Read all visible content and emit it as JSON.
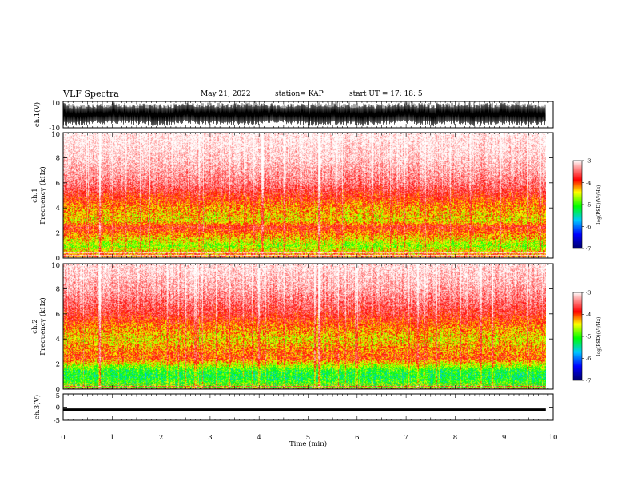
{
  "header": {
    "title": "VLF Spectra",
    "date": "May 21, 2022",
    "station": "station= KAP",
    "start": "start  UT =   17: 18: 5"
  },
  "chart_data": [
    {
      "type": "line",
      "panel": "ch1-waveform",
      "ylabel": "ch.1(V)",
      "ylim": [
        -10,
        10
      ],
      "yticks": [
        "10",
        "-10"
      ],
      "xlim": [
        0,
        10
      ],
      "data_extent_min": 9.85,
      "x": [
        0,
        0.5,
        1.0,
        1.5,
        2.0,
        2.5,
        3.0,
        3.5,
        4.0,
        4.5,
        5.0,
        5.5,
        6.0,
        6.5,
        7.0,
        7.5,
        8.0,
        8.5,
        9.0,
        9.5,
        9.85
      ],
      "envelope_top": [
        9,
        8,
        10,
        9,
        8,
        10,
        9,
        9,
        10,
        8,
        9,
        10,
        9,
        8,
        10,
        9,
        10,
        9,
        10,
        9,
        9
      ],
      "envelope_bottom": [
        -9,
        -8,
        -7,
        -8,
        -9,
        -7,
        -8,
        -9,
        -8,
        -7,
        -9,
        -8,
        -9,
        -8,
        -7,
        -9,
        -8,
        -9,
        -8,
        -9,
        -8
      ],
      "color": "#000000"
    },
    {
      "type": "heatmap",
      "panel": "ch1-spectrogram",
      "ylabel": "ch.1\nFrequency  (kHz)",
      "ylim": [
        0,
        10
      ],
      "yticks": [
        "0",
        "2",
        "4",
        "6",
        "8",
        "10"
      ],
      "xlim": [
        0,
        10
      ],
      "data_extent_min": 9.85,
      "colorbar": {
        "label": "log(PSD)(V²/Hz)",
        "range": [
          -7,
          -3
        ],
        "ticks": [
          "-3",
          "-4",
          "-5",
          "-6",
          "-7"
        ]
      },
      "frequency_profile_khz": [
        0.25,
        1.0,
        1.5,
        2.0,
        2.5,
        3.0,
        4.0,
        5.0,
        6.0,
        8.0,
        10.0
      ],
      "log_psd_profile": [
        -4.3,
        -4.9,
        -4.6,
        -4.3,
        -4.0,
        -4.6,
        -4.4,
        -4.0,
        -3.6,
        -3.2,
        -3.0
      ]
    },
    {
      "type": "heatmap",
      "panel": "ch2-spectrogram",
      "ylabel": "ch.2\nFrequency  (kHz)",
      "ylim": [
        0,
        10
      ],
      "yticks": [
        "0",
        "2",
        "4",
        "6",
        "8",
        "10"
      ],
      "xlim": [
        0,
        10
      ],
      "data_extent_min": 9.85,
      "colorbar": {
        "label": "log(PSD)(V²/Hz)",
        "range": [
          -7,
          -3
        ],
        "ticks": [
          "-3",
          "-4",
          "-5",
          "-6",
          "-7"
        ]
      },
      "frequency_profile_khz": [
        0.25,
        1.0,
        1.5,
        2.0,
        2.5,
        3.0,
        4.0,
        5.0,
        6.0,
        8.0,
        10.0
      ],
      "log_psd_profile": [
        -5.0,
        -5.3,
        -5.2,
        -4.7,
        -4.2,
        -4.3,
        -4.6,
        -4.3,
        -3.9,
        -3.4,
        -3.1
      ]
    },
    {
      "type": "line",
      "panel": "ch3-waveform",
      "ylabel": "ch.3(V)",
      "ylim": [
        -5,
        5
      ],
      "yticks": [
        "5",
        "0",
        "-5"
      ],
      "xlim": [
        0,
        10
      ],
      "xlabel": "Time  (min)",
      "xticks": [
        "0",
        "1",
        "2",
        "3",
        "4",
        "5",
        "6",
        "7",
        "8",
        "9",
        "10"
      ],
      "data_extent_min": 9.85,
      "envelope_top": -0.5,
      "envelope_bottom": -1.6,
      "color": "#000000"
    }
  ]
}
